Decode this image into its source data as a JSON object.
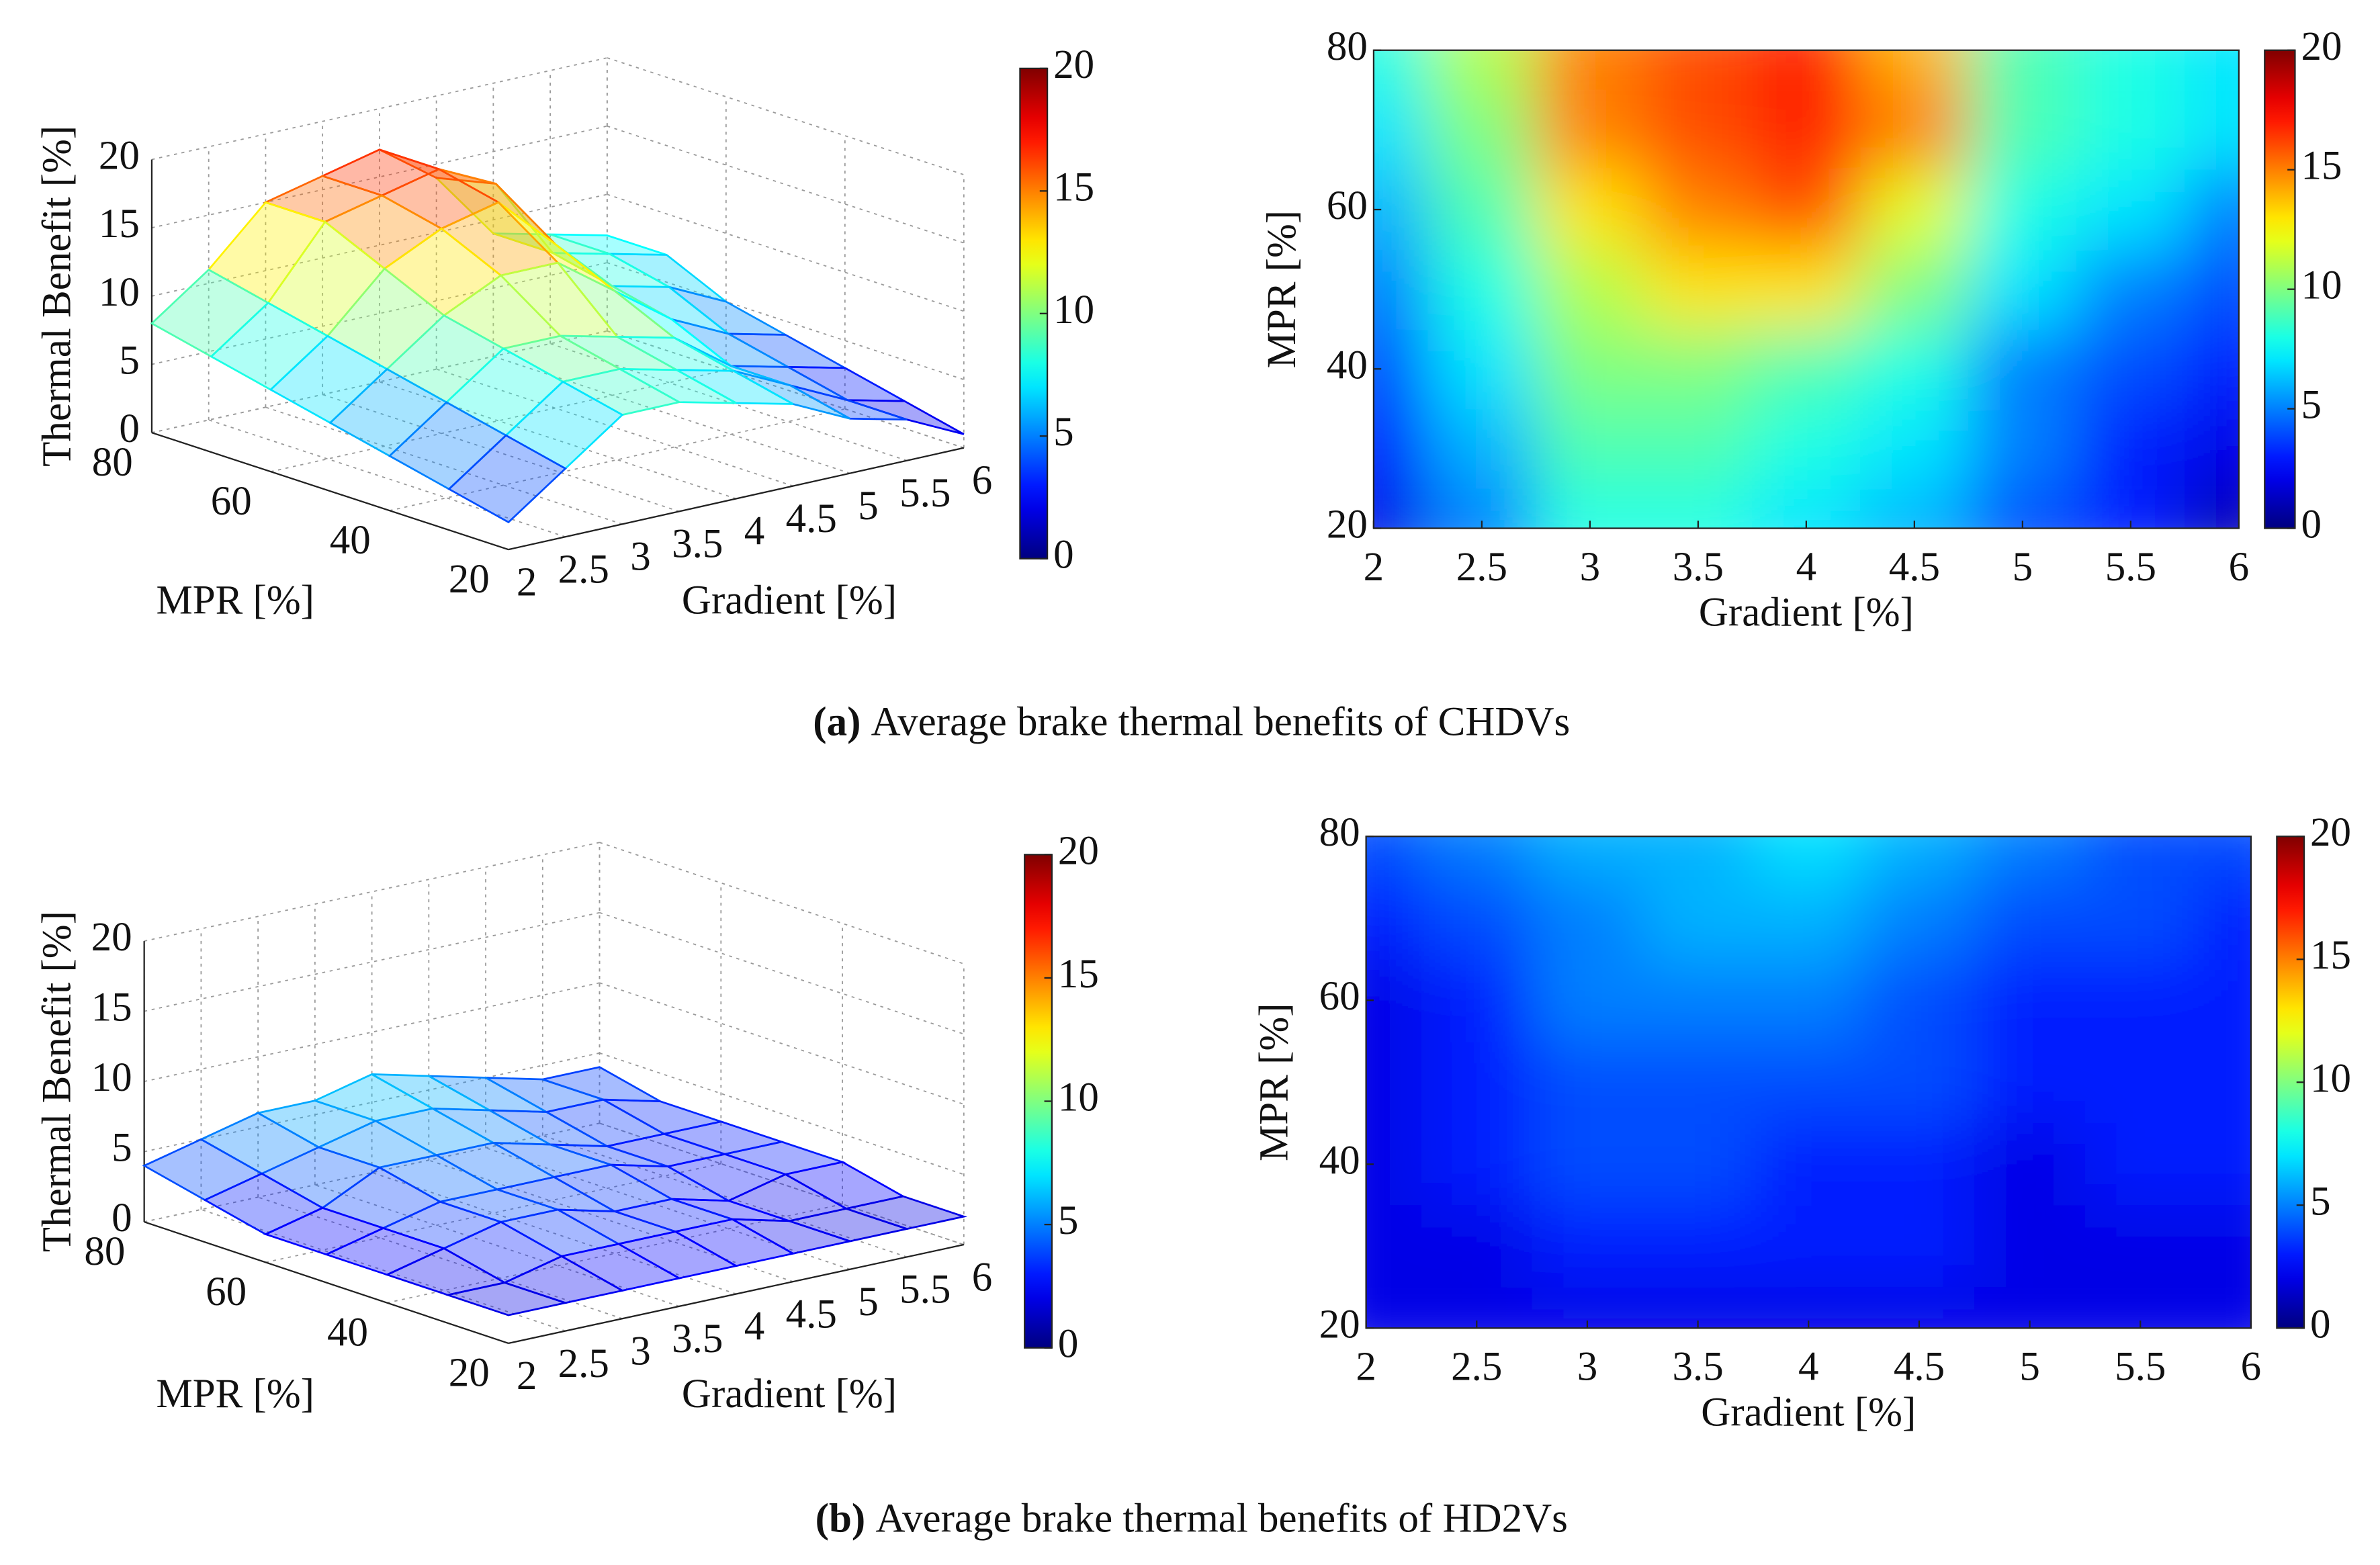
{
  "chart_data": [
    {
      "type": "surface",
      "xlabel": "Gradient [%]",
      "ylabel": "MPR [%]",
      "zlabel": "Thermal Benefit [%]",
      "colormap": "jet",
      "x": [
        2,
        2.5,
        3,
        3.5,
        4,
        4.5,
        5,
        5.5,
        6
      ],
      "y": [
        20,
        30,
        40,
        50,
        60,
        70,
        80
      ],
      "values": [
        [
          2,
          5,
          8,
          8,
          7,
          6,
          4,
          3,
          1
        ],
        [
          3,
          6,
          9,
          9,
          8,
          7,
          5,
          3,
          2
        ],
        [
          4,
          7,
          10,
          10,
          9,
          8,
          5,
          4,
          3
        ],
        [
          5,
          8,
          11,
          13,
          13,
          10,
          7,
          5,
          4
        ],
        [
          6,
          9,
          13,
          15,
          16,
          12,
          8,
          7,
          5
        ],
        [
          7,
          10,
          15,
          16,
          17,
          15,
          9,
          8,
          7
        ],
        [
          8,
          11,
          15,
          16,
          17,
          14,
          9,
          8,
          7
        ]
      ],
      "xlim": [
        2,
        6
      ],
      "ylim": [
        20,
        80
      ],
      "zlim": [
        0,
        20
      ],
      "xticks": [
        2,
        2.5,
        3,
        3.5,
        4,
        4.5,
        5,
        5.5,
        6
      ],
      "yticks": [
        20,
        40,
        60,
        80
      ],
      "zticks": [
        0,
        5,
        10,
        15,
        20
      ],
      "clim": [
        0,
        20
      ],
      "cticks": [
        0,
        5,
        10,
        15,
        20
      ],
      "grid": true
    },
    {
      "type": "heatmap",
      "xlabel": "Gradient [%]",
      "ylabel": "MPR [%]",
      "colormap": "jet",
      "x": [
        2,
        2.5,
        3,
        3.5,
        4,
        4.5,
        5,
        5.5,
        6
      ],
      "y": [
        20,
        30,
        40,
        50,
        60,
        70,
        80
      ],
      "values": [
        [
          2,
          5,
          8,
          8,
          7,
          6,
          4,
          3,
          1
        ],
        [
          3,
          6,
          9,
          9,
          8,
          7,
          5,
          3,
          2
        ],
        [
          4,
          7,
          10,
          10,
          9,
          8,
          5,
          4,
          3
        ],
        [
          5,
          8,
          11,
          13,
          13,
          10,
          7,
          5,
          4
        ],
        [
          6,
          9,
          13,
          15,
          16,
          12,
          8,
          7,
          5
        ],
        [
          7,
          10,
          15,
          16,
          17,
          15,
          9,
          8,
          7
        ],
        [
          8,
          11,
          15,
          16,
          17,
          14,
          9,
          8,
          7
        ]
      ],
      "xlim": [
        2,
        6
      ],
      "ylim": [
        20,
        80
      ],
      "xticks": [
        2,
        2.5,
        3,
        3.5,
        4,
        4.5,
        5,
        5.5,
        6
      ],
      "yticks": [
        20,
        40,
        60,
        80
      ],
      "clim": [
        0,
        20
      ],
      "cticks": [
        0,
        5,
        10,
        15,
        20
      ]
    },
    {
      "type": "surface",
      "xlabel": "Gradient [%]",
      "ylabel": "MPR [%]",
      "zlabel": "Thermal Benefit [%]",
      "colormap": "jet",
      "x": [
        2,
        2.5,
        3,
        3.5,
        4,
        4.5,
        5,
        5.5,
        6
      ],
      "y": [
        20,
        30,
        40,
        50,
        60,
        70,
        80
      ],
      "values": [
        [
          2,
          2,
          2,
          2,
          2,
          2,
          2,
          2,
          2
        ],
        [
          2,
          2,
          3,
          3,
          3,
          3,
          2,
          2,
          2
        ],
        [
          2,
          3,
          4,
          4,
          3,
          3,
          2,
          3,
          3
        ],
        [
          2,
          3,
          4,
          4,
          4,
          4,
          3,
          3,
          3
        ],
        [
          2,
          3,
          5,
          5,
          5,
          4,
          3,
          3,
          3
        ],
        [
          3,
          4,
          5,
          6,
          6,
          5,
          4,
          4,
          3
        ],
        [
          4,
          5,
          6,
          6,
          7,
          6,
          5,
          4,
          4
        ]
      ],
      "xlim": [
        2,
        6
      ],
      "ylim": [
        20,
        80
      ],
      "zlim": [
        0,
        20
      ],
      "xticks": [
        2,
        2.5,
        3,
        3.5,
        4,
        4.5,
        5,
        5.5,
        6
      ],
      "yticks": [
        20,
        40,
        60,
        80
      ],
      "zticks": [
        0,
        5,
        10,
        15,
        20
      ],
      "clim": [
        0,
        20
      ],
      "cticks": [
        0,
        5,
        10,
        15,
        20
      ],
      "grid": true
    },
    {
      "type": "heatmap",
      "xlabel": "Gradient [%]",
      "ylabel": "MPR [%]",
      "colormap": "jet",
      "x": [
        2,
        2.5,
        3,
        3.5,
        4,
        4.5,
        5,
        5.5,
        6
      ],
      "y": [
        20,
        30,
        40,
        50,
        60,
        70,
        80
      ],
      "values": [
        [
          2,
          2,
          2,
          2,
          2,
          2,
          2,
          2,
          2
        ],
        [
          2,
          2,
          3,
          3,
          3,
          3,
          2,
          2,
          2
        ],
        [
          2,
          3,
          4,
          4,
          3,
          3,
          2,
          3,
          3
        ],
        [
          2,
          3,
          4,
          4,
          4,
          4,
          3,
          3,
          3
        ],
        [
          2,
          3,
          5,
          5,
          5,
          4,
          3,
          3,
          3
        ],
        [
          3,
          4,
          5,
          6,
          6,
          5,
          4,
          4,
          3
        ],
        [
          4,
          5,
          6,
          6,
          7,
          6,
          5,
          4,
          4
        ]
      ],
      "xlim": [
        2,
        6
      ],
      "ylim": [
        20,
        80
      ],
      "xticks": [
        2,
        2.5,
        3,
        3.5,
        4,
        4.5,
        5,
        5.5,
        6
      ],
      "yticks": [
        20,
        40,
        60,
        80
      ],
      "clim": [
        0,
        20
      ],
      "cticks": [
        0,
        5,
        10,
        15,
        20
      ]
    }
  ],
  "captions": [
    {
      "label": "(a)",
      "text": "Average brake thermal benefits of CHDVs"
    },
    {
      "label": "(b)",
      "text": "Average brake thermal benefits of HD2Vs"
    }
  ]
}
